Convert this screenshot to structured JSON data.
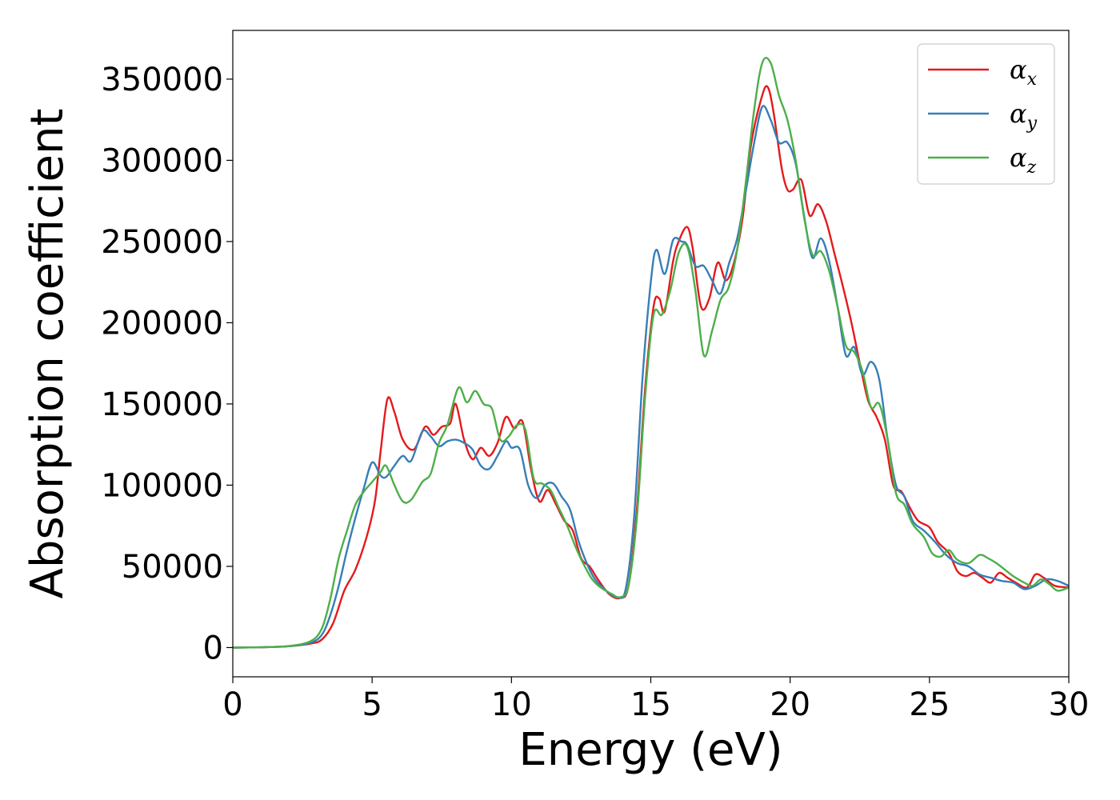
{
  "chart_data": {
    "type": "line",
    "title": "",
    "xlabel": "Energy (eV)",
    "ylabel": "Absorption coefficient",
    "xlim": [
      0,
      30
    ],
    "ylim": [
      -18000,
      380000
    ],
    "xticks": [
      "0",
      "5",
      "10",
      "15",
      "20",
      "25",
      "30"
    ],
    "yticks": [
      "0",
      "50000",
      "100000",
      "150000",
      "200000",
      "250000",
      "300000",
      "350000"
    ],
    "grid": false,
    "legend_position": "top-right",
    "series": [
      {
        "name": "α_x",
        "legend_main": "α",
        "legend_sub": "x",
        "color": "#e41a1c",
        "points": [
          [
            0,
            0
          ],
          [
            1,
            200
          ],
          [
            2,
            800
          ],
          [
            2.8,
            2500
          ],
          [
            3.2,
            5000
          ],
          [
            3.6,
            15000
          ],
          [
            4,
            35000
          ],
          [
            4.4,
            48000
          ],
          [
            4.8,
            68000
          ],
          [
            5.1,
            90000
          ],
          [
            5.3,
            120000
          ],
          [
            5.55,
            153000
          ],
          [
            5.8,
            145000
          ],
          [
            6.1,
            128000
          ],
          [
            6.5,
            122000
          ],
          [
            6.9,
            136000
          ],
          [
            7.2,
            131000
          ],
          [
            7.5,
            136000
          ],
          [
            7.8,
            138000
          ],
          [
            8.0,
            150000
          ],
          [
            8.3,
            128000
          ],
          [
            8.6,
            116000
          ],
          [
            8.9,
            123000
          ],
          [
            9.2,
            118000
          ],
          [
            9.5,
            126000
          ],
          [
            9.8,
            142000
          ],
          [
            10.1,
            135000
          ],
          [
            10.4,
            139000
          ],
          [
            10.7,
            110000
          ],
          [
            11.0,
            90000
          ],
          [
            11.3,
            97000
          ],
          [
            11.6,
            88000
          ],
          [
            11.9,
            78000
          ],
          [
            12.2,
            72000
          ],
          [
            12.5,
            55000
          ],
          [
            12.8,
            50000
          ],
          [
            13.1,
            42000
          ],
          [
            13.5,
            33000
          ],
          [
            13.9,
            30500
          ],
          [
            14.2,
            38000
          ],
          [
            14.5,
            85000
          ],
          [
            14.8,
            160000
          ],
          [
            15.1,
            210000
          ],
          [
            15.3,
            215000
          ],
          [
            15.5,
            207000
          ],
          [
            15.8,
            238000
          ],
          [
            16.0,
            250000
          ],
          [
            16.3,
            259000
          ],
          [
            16.5,
            246000
          ],
          [
            16.8,
            210000
          ],
          [
            17.1,
            215000
          ],
          [
            17.4,
            237000
          ],
          [
            17.7,
            226000
          ],
          [
            18.0,
            238000
          ],
          [
            18.3,
            265000
          ],
          [
            18.6,
            310000
          ],
          [
            19.0,
            340000
          ],
          [
            19.2,
            345000
          ],
          [
            19.4,
            330000
          ],
          [
            19.7,
            295000
          ],
          [
            19.9,
            282000
          ],
          [
            20.1,
            282000
          ],
          [
            20.4,
            288000
          ],
          [
            20.7,
            266000
          ],
          [
            21.0,
            273000
          ],
          [
            21.3,
            262000
          ],
          [
            21.6,
            242000
          ],
          [
            21.9,
            222000
          ],
          [
            22.2,
            200000
          ],
          [
            22.5,
            175000
          ],
          [
            22.8,
            152000
          ],
          [
            23.1,
            142000
          ],
          [
            23.4,
            128000
          ],
          [
            23.7,
            100000
          ],
          [
            24.0,
            96000
          ],
          [
            24.3,
            86000
          ],
          [
            24.6,
            78000
          ],
          [
            25.0,
            74000
          ],
          [
            25.3,
            65000
          ],
          [
            25.7,
            58000
          ],
          [
            26.0,
            47000
          ],
          [
            26.3,
            44000
          ],
          [
            26.6,
            46000
          ],
          [
            26.9,
            43000
          ],
          [
            27.2,
            40000
          ],
          [
            27.5,
            46000
          ],
          [
            27.8,
            43000
          ],
          [
            28.1,
            40000
          ],
          [
            28.5,
            37000
          ],
          [
            28.8,
            45000
          ],
          [
            29.1,
            43000
          ],
          [
            29.5,
            38000
          ],
          [
            30,
            37000
          ]
        ]
      },
      {
        "name": "α_y",
        "legend_main": "α",
        "legend_sub": "y",
        "color": "#377eb8",
        "points": [
          [
            0,
            0
          ],
          [
            1,
            200
          ],
          [
            2,
            800
          ],
          [
            2.8,
            3000
          ],
          [
            3.2,
            8000
          ],
          [
            3.5,
            20000
          ],
          [
            3.8,
            38000
          ],
          [
            4.1,
            60000
          ],
          [
            4.4,
            80000
          ],
          [
            4.7,
            98000
          ],
          [
            5.0,
            114000
          ],
          [
            5.3,
            106000
          ],
          [
            5.5,
            105000
          ],
          [
            5.8,
            112000
          ],
          [
            6.1,
            118000
          ],
          [
            6.4,
            115000
          ],
          [
            6.8,
            133000
          ],
          [
            7.1,
            130000
          ],
          [
            7.4,
            124000
          ],
          [
            7.7,
            127000
          ],
          [
            8.0,
            128000
          ],
          [
            8.3,
            126000
          ],
          [
            8.6,
            122000
          ],
          [
            8.9,
            112000
          ],
          [
            9.2,
            110000
          ],
          [
            9.5,
            118000
          ],
          [
            9.8,
            127000
          ],
          [
            10.0,
            123000
          ],
          [
            10.3,
            122000
          ],
          [
            10.6,
            100000
          ],
          [
            10.9,
            92000
          ],
          [
            11.2,
            100000
          ],
          [
            11.5,
            101000
          ],
          [
            11.8,
            93000
          ],
          [
            12.1,
            85000
          ],
          [
            12.4,
            66000
          ],
          [
            12.7,
            52000
          ],
          [
            13.0,
            42000
          ],
          [
            13.4,
            35000
          ],
          [
            13.8,
            31000
          ],
          [
            14.1,
            36000
          ],
          [
            14.4,
            80000
          ],
          [
            14.7,
            165000
          ],
          [
            15.0,
            225000
          ],
          [
            15.2,
            245000
          ],
          [
            15.5,
            230000
          ],
          [
            15.8,
            251000
          ],
          [
            16.1,
            250000
          ],
          [
            16.3,
            248000
          ],
          [
            16.6,
            235000
          ],
          [
            16.9,
            235000
          ],
          [
            17.2,
            226000
          ],
          [
            17.5,
            218000
          ],
          [
            17.8,
            236000
          ],
          [
            18.1,
            252000
          ],
          [
            18.4,
            280000
          ],
          [
            18.7,
            310000
          ],
          [
            19.0,
            333000
          ],
          [
            19.3,
            325000
          ],
          [
            19.6,
            311000
          ],
          [
            19.9,
            311000
          ],
          [
            20.2,
            298000
          ],
          [
            20.5,
            266000
          ],
          [
            20.8,
            240000
          ],
          [
            21.1,
            252000
          ],
          [
            21.4,
            238000
          ],
          [
            21.7,
            210000
          ],
          [
            22.0,
            180000
          ],
          [
            22.3,
            185000
          ],
          [
            22.6,
            168000
          ],
          [
            22.9,
            176000
          ],
          [
            23.2,
            165000
          ],
          [
            23.5,
            128000
          ],
          [
            23.8,
            100000
          ],
          [
            24.1,
            93000
          ],
          [
            24.4,
            78000
          ],
          [
            24.8,
            72000
          ],
          [
            25.2,
            65000
          ],
          [
            25.6,
            57000
          ],
          [
            26.0,
            52000
          ],
          [
            26.4,
            50000
          ],
          [
            26.8,
            45000
          ],
          [
            27.2,
            43000
          ],
          [
            27.6,
            41000
          ],
          [
            28.0,
            40000
          ],
          [
            28.4,
            36000
          ],
          [
            28.8,
            38000
          ],
          [
            29.2,
            42000
          ],
          [
            29.6,
            41000
          ],
          [
            30,
            38000
          ]
        ]
      },
      {
        "name": "α_z",
        "legend_main": "α",
        "legend_sub": "z",
        "color": "#4daf4a",
        "points": [
          [
            0,
            0
          ],
          [
            1,
            200
          ],
          [
            2,
            900
          ],
          [
            2.8,
            4000
          ],
          [
            3.2,
            12000
          ],
          [
            3.5,
            30000
          ],
          [
            3.8,
            55000
          ],
          [
            4.1,
            72000
          ],
          [
            4.4,
            88000
          ],
          [
            4.7,
            96000
          ],
          [
            5.0,
            102000
          ],
          [
            5.3,
            108000
          ],
          [
            5.5,
            112000
          ],
          [
            5.8,
            100000
          ],
          [
            6.1,
            90000
          ],
          [
            6.4,
            91000
          ],
          [
            6.8,
            102000
          ],
          [
            7.1,
            107000
          ],
          [
            7.4,
            126000
          ],
          [
            7.7,
            137000
          ],
          [
            8.1,
            160000
          ],
          [
            8.4,
            151000
          ],
          [
            8.7,
            158000
          ],
          [
            9.0,
            150000
          ],
          [
            9.3,
            147000
          ],
          [
            9.6,
            128000
          ],
          [
            9.9,
            130000
          ],
          [
            10.2,
            137000
          ],
          [
            10.5,
            134000
          ],
          [
            10.8,
            104000
          ],
          [
            11.1,
            101000
          ],
          [
            11.4,
            97000
          ],
          [
            11.7,
            86000
          ],
          [
            12.0,
            75000
          ],
          [
            12.3,
            62000
          ],
          [
            12.6,
            51000
          ],
          [
            12.9,
            42000
          ],
          [
            13.2,
            37000
          ],
          [
            13.6,
            33000
          ],
          [
            13.9,
            31000
          ],
          [
            14.2,
            38000
          ],
          [
            14.5,
            80000
          ],
          [
            14.8,
            155000
          ],
          [
            15.1,
            205000
          ],
          [
            15.4,
            205000
          ],
          [
            15.7,
            220000
          ],
          [
            16.0,
            243000
          ],
          [
            16.3,
            247000
          ],
          [
            16.6,
            220000
          ],
          [
            16.9,
            180000
          ],
          [
            17.2,
            195000
          ],
          [
            17.5,
            214000
          ],
          [
            17.8,
            222000
          ],
          [
            18.1,
            245000
          ],
          [
            18.4,
            285000
          ],
          [
            18.7,
            330000
          ],
          [
            19.0,
            360000
          ],
          [
            19.3,
            360000
          ],
          [
            19.6,
            340000
          ],
          [
            19.9,
            325000
          ],
          [
            20.2,
            300000
          ],
          [
            20.5,
            265000
          ],
          [
            20.8,
            242000
          ],
          [
            21.1,
            244000
          ],
          [
            21.4,
            232000
          ],
          [
            21.7,
            210000
          ],
          [
            22.0,
            186000
          ],
          [
            22.3,
            182000
          ],
          [
            22.6,
            170000
          ],
          [
            22.9,
            148000
          ],
          [
            23.2,
            150000
          ],
          [
            23.5,
            128000
          ],
          [
            23.8,
            95000
          ],
          [
            24.1,
            88000
          ],
          [
            24.4,
            76000
          ],
          [
            24.8,
            68000
          ],
          [
            25.1,
            58000
          ],
          [
            25.4,
            56000
          ],
          [
            25.7,
            60000
          ],
          [
            26.0,
            54000
          ],
          [
            26.4,
            52000
          ],
          [
            26.8,
            57000
          ],
          [
            27.1,
            55000
          ],
          [
            27.4,
            52000
          ],
          [
            27.7,
            48000
          ],
          [
            28.0,
            44000
          ],
          [
            28.4,
            40000
          ],
          [
            28.7,
            38000
          ],
          [
            29.0,
            42000
          ],
          [
            29.3,
            39000
          ],
          [
            29.6,
            35000
          ],
          [
            30,
            37000
          ]
        ]
      }
    ]
  }
}
